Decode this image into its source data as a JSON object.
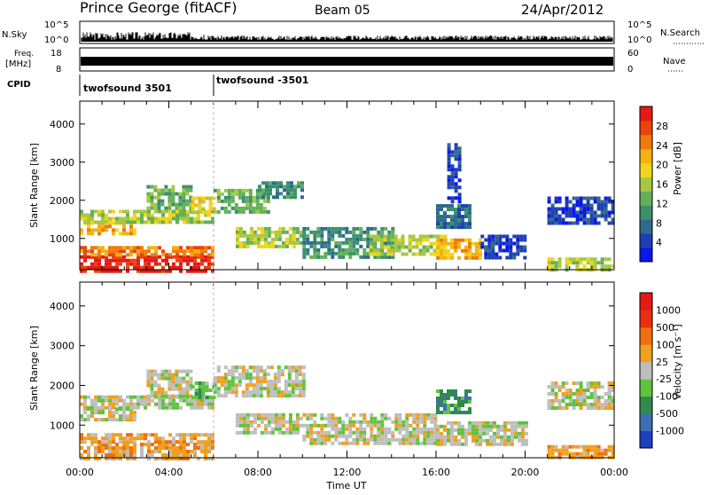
{
  "header": {
    "station": "Prince George (fitACF)",
    "beam": "Beam 05",
    "date": "24/Apr/2012"
  },
  "status_panels": {
    "nsky": {
      "label": "N.Sky",
      "ticks": [
        "10^5",
        "10^0"
      ]
    },
    "nsearch": {
      "label": "N.Search",
      "ticks": [
        "10^5",
        "10^0"
      ]
    },
    "freq": {
      "label_top": "Freq.",
      "label_unit": "[MHz]",
      "ticks": [
        "18",
        "8"
      ]
    },
    "nave": {
      "label": "Nave",
      "ticks": [
        "60",
        "0"
      ]
    },
    "cpid": {
      "label": "CPID",
      "segments": [
        {
          "name": "twofsound 3501",
          "start_hour": 0
        },
        {
          "name": "twofsound -3501",
          "start_hour": 6
        }
      ]
    }
  },
  "chart_data": [
    {
      "type": "heatmap",
      "panel": "power",
      "xlabel": "",
      "ylabel": "Slant Range [km]",
      "x_range_hours": [
        0,
        24
      ],
      "ylim": [
        180,
        4600
      ],
      "yticks": [
        "1000",
        "2000",
        "3000",
        "4000"
      ],
      "colorbar": {
        "label": "Power [dB]",
        "ticks": [
          "28",
          "24",
          "20",
          "16",
          "12",
          "8",
          "4"
        ],
        "colors": [
          "#0b16ea",
          "#1e3fb4",
          "#2e6a8e",
          "#3a8f6e",
          "#62b05a",
          "#a7c742",
          "#f2d41c",
          "#f3b211",
          "#f07a0b",
          "#eb430a",
          "#e31b13"
        ]
      },
      "regions": [
        {
          "t0": 0.0,
          "t1": 6.0,
          "r0": 180,
          "r1": 560,
          "level": 10
        },
        {
          "t0": 0.0,
          "t1": 6.0,
          "r0": 560,
          "r1": 800,
          "level": 8
        },
        {
          "t0": 0.0,
          "t1": 2.5,
          "r0": 1100,
          "r1": 1450,
          "level": 7
        },
        {
          "t0": 0.0,
          "t1": 6.0,
          "r0": 1450,
          "r1": 1750,
          "level": 5
        },
        {
          "t0": 3.0,
          "t1": 5.0,
          "r0": 1750,
          "r1": 2400,
          "level": 4
        },
        {
          "t0": 5.0,
          "t1": 6.0,
          "r0": 1700,
          "r1": 2100,
          "level": 6
        },
        {
          "t0": 6.0,
          "t1": 8.5,
          "r0": 1700,
          "r1": 2300,
          "level": 4
        },
        {
          "t0": 8.0,
          "t1": 10.0,
          "r0": 2100,
          "r1": 2500,
          "level": 3
        },
        {
          "t0": 7.0,
          "t1": 10.0,
          "r0": 800,
          "r1": 1300,
          "level": 5
        },
        {
          "t0": 10.0,
          "t1": 14.0,
          "r0": 500,
          "r1": 1300,
          "level": 3
        },
        {
          "t0": 13.0,
          "t1": 16.5,
          "r0": 600,
          "r1": 1100,
          "level": 5
        },
        {
          "t0": 16.0,
          "t1": 18.0,
          "r0": 500,
          "r1": 1000,
          "level": 7
        },
        {
          "t0": 18.0,
          "t1": 20.0,
          "r0": 500,
          "r1": 1100,
          "level": 1
        },
        {
          "t0": 16.0,
          "t1": 17.5,
          "r0": 1300,
          "r1": 1900,
          "level": 2
        },
        {
          "t0": 16.5,
          "t1": 17.0,
          "r0": 2000,
          "r1": 3500,
          "level": 1
        },
        {
          "t0": 21.0,
          "t1": 24.0,
          "r0": 180,
          "r1": 500,
          "level": 5
        },
        {
          "t0": 21.0,
          "t1": 24.0,
          "r0": 1400,
          "r1": 2100,
          "level": 1
        }
      ]
    },
    {
      "type": "heatmap",
      "panel": "velocity",
      "xlabel": "Time UT",
      "ylabel": "Slant Range [km]",
      "x_range_hours": [
        0,
        24
      ],
      "xticks": [
        "00:00",
        "04:00",
        "08:00",
        "12:00",
        "16:00",
        "20:00",
        "00:00"
      ],
      "ylim": [
        180,
        4600
      ],
      "yticks": [
        "1000",
        "2000",
        "3000",
        "4000"
      ],
      "colorbar": {
        "label": "Velocity [m s⁻¹]",
        "ticks": [
          "1000",
          "500",
          "100",
          "25",
          "-25",
          "-100",
          "-500",
          "-1000"
        ],
        "colors": [
          "#1d3fc2",
          "#3b6fb0",
          "#2f8a4f",
          "#5ec43e",
          "#bebebe",
          "#f0a020",
          "#f07010",
          "#e83010",
          "#e31b13"
        ]
      },
      "regions": [
        {
          "t0": 0.0,
          "t1": 6.0,
          "r0": 180,
          "r1": 560,
          "level": 5
        },
        {
          "t0": 0.0,
          "t1": 6.0,
          "r0": 560,
          "r1": 800,
          "level": 5
        },
        {
          "t0": 0.0,
          "t1": 2.5,
          "r0": 1100,
          "r1": 1450,
          "level": 4
        },
        {
          "t0": 0.0,
          "t1": 6.0,
          "r0": 1450,
          "r1": 1750,
          "level": 4
        },
        {
          "t0": 3.0,
          "t1": 5.0,
          "r0": 1750,
          "r1": 2400,
          "level": 4
        },
        {
          "t0": 5.0,
          "t1": 6.0,
          "r0": 1700,
          "r1": 2100,
          "level": 3
        },
        {
          "t0": 6.0,
          "t1": 10.0,
          "r0": 1700,
          "r1": 2500,
          "level": 4
        },
        {
          "t0": 7.0,
          "t1": 10.0,
          "r0": 800,
          "r1": 1300,
          "level": 4
        },
        {
          "t0": 10.0,
          "t1": 16.0,
          "r0": 500,
          "r1": 1300,
          "level": 4
        },
        {
          "t0": 16.0,
          "t1": 20.0,
          "r0": 500,
          "r1": 1100,
          "level": 4
        },
        {
          "t0": 16.0,
          "t1": 17.5,
          "r0": 1300,
          "r1": 1900,
          "level": 2
        },
        {
          "t0": 21.0,
          "t1": 24.0,
          "r0": 180,
          "r1": 500,
          "level": 5
        },
        {
          "t0": 21.0,
          "t1": 24.0,
          "r0": 1400,
          "r1": 2100,
          "level": 4
        }
      ]
    }
  ]
}
